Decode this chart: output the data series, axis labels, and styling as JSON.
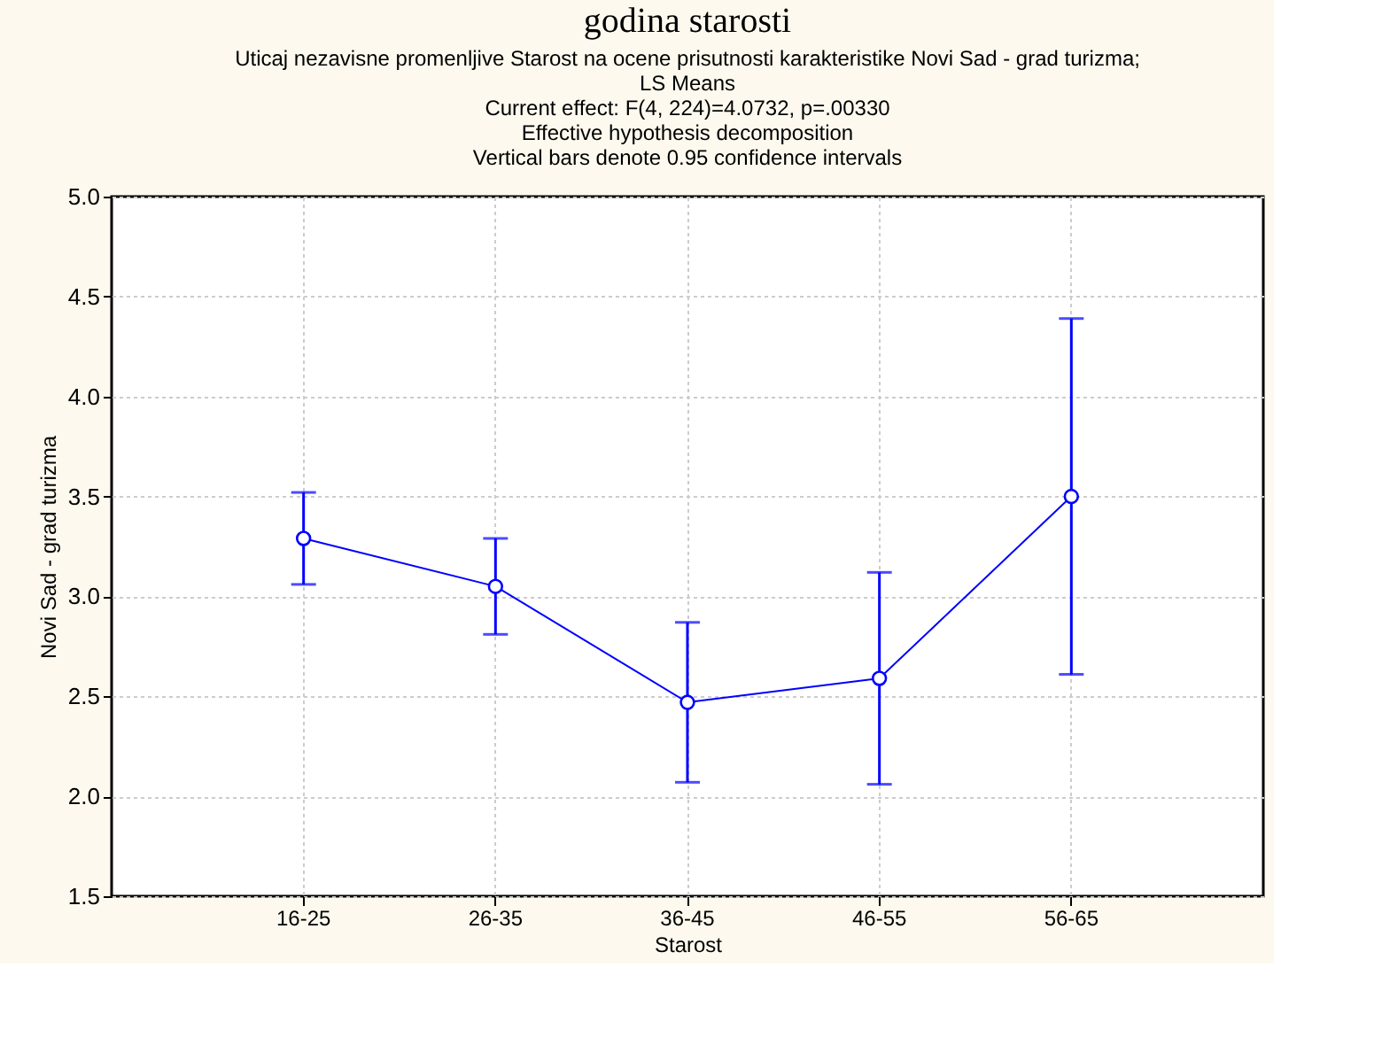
{
  "chart_data": {
    "type": "line",
    "title": "godina starosti",
    "subtitle": "Uticaj nezavisne promenljive Starost na ocene prisutnosti karakteristike Novi Sad - grad turizma;\nLS Means\nCurrent effect: F(4, 224)=4.0732, p=.00330\nEffective hypothesis decomposition\nVertical bars denote 0.95 confidence intervals",
    "xlabel": "Starost",
    "ylabel": "Novi Sad - grad turizma",
    "categories": [
      "16-25",
      "26-35",
      "36-45",
      "46-55",
      "56-65"
    ],
    "series": [
      {
        "color": "#0000ff",
        "values": [
          3.29,
          3.05,
          2.47,
          2.59,
          3.5
        ],
        "errors": [
          [
            3.06,
            3.52
          ],
          [
            2.81,
            3.29
          ],
          [
            2.07,
            2.87
          ],
          [
            2.06,
            3.12
          ],
          [
            2.61,
            4.39
          ]
        ]
      }
    ],
    "ylim": [
      1.5,
      5.0
    ],
    "yticks": [
      1.5,
      {
        "value": 2,
        "label": "2.0"
      },
      2.5,
      {
        "value": 3,
        "label": "3.0"
      },
      3.5,
      {
        "value": 4,
        "label": "4.0"
      },
      4.5,
      {
        "value": 5,
        "label": "5.0"
      }
    ],
    "grid": true,
    "marker": "circle",
    "line_style": "solid"
  }
}
